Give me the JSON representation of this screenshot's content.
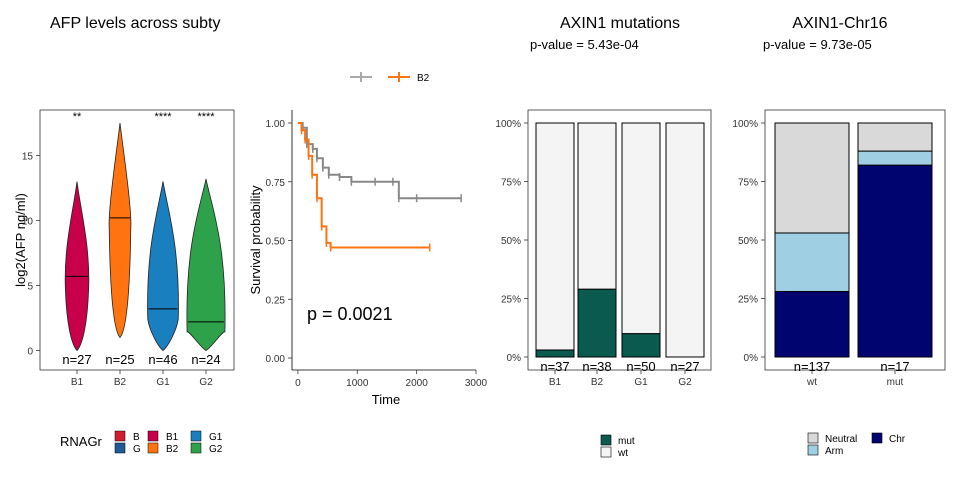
{
  "colors": {
    "B": "#cf1f2e",
    "G": "#1f5a96",
    "B1": "#c8004a",
    "B2": "#ff7410",
    "G1": "#1a7fbf",
    "G2": "#2ea24b",
    "km_other": "#888888",
    "km_b2": "#ff7410",
    "mut": "#0b5a4f",
    "wt": "#f4f4f4",
    "Neutral": "#d9d9d9",
    "Arm": "#9ecfe3",
    "Chr": "#00046f"
  },
  "chart_data": [
    {
      "id": "afp",
      "type": "violin",
      "title": "AFP levels across subty",
      "ylabel": "log2(AFP ng/ml)",
      "ylim": [
        -1.5,
        18.5
      ],
      "yticks": [
        0,
        5,
        10,
        15
      ],
      "categories": [
        "B1",
        "B2",
        "G1",
        "G2"
      ],
      "medians": [
        5.7,
        10.2,
        3.2,
        2.2
      ],
      "min": [
        0,
        1,
        0,
        0
      ],
      "max": [
        13,
        17.5,
        13,
        13.2
      ],
      "counts": [
        "n=27",
        "n=25",
        "n=46",
        "n=24"
      ],
      "significance": [
        "**",
        "",
        "****",
        "****"
      ],
      "legend": {
        "title": "RNAGr",
        "entries": [
          {
            "label": "B",
            "color": "#cf1f2e"
          },
          {
            "label": "G",
            "color": "#1f5a96"
          },
          {
            "label": "B1",
            "color": "#c8004a"
          },
          {
            "label": "B2",
            "color": "#ff7410"
          },
          {
            "label": "G1",
            "color": "#1a7fbf"
          },
          {
            "label": "G2",
            "color": "#2ea24b"
          }
        ]
      }
    },
    {
      "id": "km",
      "type": "line",
      "xlabel": "Time",
      "ylabel": "Survival probability",
      "xlim": [
        -100,
        3000
      ],
      "ylim": [
        0,
        1
      ],
      "xticks": [
        0,
        1000,
        2000,
        3000
      ],
      "yticks": [
        "0.00",
        "0.25",
        "0.50",
        "0.75",
        "1.00"
      ],
      "annotation": "p = 0.0021",
      "legend": [
        "",
        "B2"
      ],
      "series": [
        {
          "color": "#888888",
          "x": [
            0,
            80,
            150,
            250,
            320,
            420,
            520,
            700,
            900,
            1300,
            1600,
            1700,
            2000,
            2750
          ],
          "y": [
            1.0,
            0.98,
            0.91,
            0.89,
            0.85,
            0.81,
            0.78,
            0.77,
            0.75,
            0.75,
            0.75,
            0.68,
            0.68,
            0.68
          ]
        },
        {
          "color": "#ff7410",
          "name": "B2",
          "x": [
            0,
            60,
            120,
            180,
            240,
            320,
            400,
            480,
            550,
            2220
          ],
          "y": [
            1.0,
            0.97,
            0.93,
            0.86,
            0.78,
            0.68,
            0.56,
            0.49,
            0.47,
            0.47
          ]
        }
      ]
    },
    {
      "id": "axin1",
      "type": "bar",
      "stacked": true,
      "title": "AXIN1 mutations",
      "pvalue": "p-value = 5.43e-04",
      "categories": [
        "B1",
        "B2",
        "G1",
        "G2"
      ],
      "yticks": [
        "0%",
        "25%",
        "50%",
        "75%",
        "100%"
      ],
      "series": [
        {
          "name": "mut",
          "values": [
            0.03,
            0.29,
            0.1,
            0.0
          ]
        },
        {
          "name": "wt",
          "values": [
            0.97,
            0.71,
            0.9,
            1.0
          ]
        }
      ],
      "counts": [
        "n=37",
        "n=38",
        "n=50",
        "n=27"
      ],
      "legend": [
        "mut",
        "wt"
      ]
    },
    {
      "id": "chr16",
      "type": "bar",
      "stacked": true,
      "title": "AXIN1-Chr16",
      "pvalue": "p-value = 9.73e-05",
      "categories": [
        "wt",
        "mut"
      ],
      "yticks": [
        "0%",
        "25%",
        "50%",
        "75%",
        "100%"
      ],
      "series": [
        {
          "name": "Chr",
          "values": [
            0.28,
            0.82
          ]
        },
        {
          "name": "Arm",
          "values": [
            0.25,
            0.06
          ]
        },
        {
          "name": "Neutral",
          "values": [
            0.47,
            0.12
          ]
        }
      ],
      "counts": [
        "n=137",
        "n=17"
      ],
      "legend": [
        "Neutral",
        "Arm",
        "Chr"
      ]
    }
  ]
}
